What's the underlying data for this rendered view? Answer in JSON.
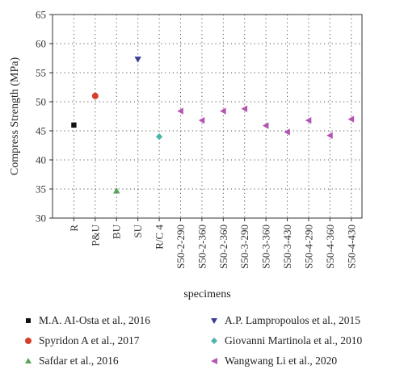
{
  "chart_data": {
    "type": "scatter",
    "xlabel": "specimens",
    "ylabel": "Compress Strength (MPa)",
    "ylim": [
      30,
      65
    ],
    "yticks": [
      30,
      35,
      40,
      45,
      50,
      55,
      60,
      65
    ],
    "categories": [
      "R",
      "P&U",
      "BU",
      "SU",
      "R/C 4",
      "S50-2-290",
      "S50-2-360",
      "S50-2-360",
      "S50-3-290",
      "S50-3-360",
      "S50-3-430",
      "S50-4-290",
      "S50-4-360",
      "S50-4-430"
    ],
    "grid": true,
    "legend_position": "bottom",
    "series": [
      {
        "name": "M.A. AI-Osta et al., 2016",
        "color": "#111111",
        "marker": "square",
        "points": [
          {
            "x": "R",
            "y": 46.0
          }
        ]
      },
      {
        "name": "A.P. Lampropoulos et al., 2015",
        "color": "#3a3f8f",
        "marker": "triangle-down",
        "points": [
          {
            "x": "SU",
            "y": 57.3
          }
        ]
      },
      {
        "name": "Spyridon A et al., 2017",
        "color": "#d6402b",
        "marker": "circle",
        "points": [
          {
            "x": "P&U",
            "y": 51.0
          }
        ]
      },
      {
        "name": "Giovanni Martinola et al., 2010",
        "color": "#4fb5a9",
        "marker": "diamond",
        "points": [
          {
            "x": "R/C 4",
            "y": 44.0
          }
        ]
      },
      {
        "name": "Safdar et al., 2016",
        "color": "#5aa35a",
        "marker": "triangle-up",
        "points": [
          {
            "x": "BU",
            "y": 34.7
          }
        ]
      },
      {
        "name": "Wangwang Li et al., 2020",
        "color": "#b356b3",
        "marker": "triangle-left",
        "points": [
          {
            "x": "S50-2-290",
            "y": 48.4
          },
          {
            "x": "S50-2-360",
            "y": 46.8
          },
          {
            "x": "S50-2-360",
            "y": 48.4
          },
          {
            "x": "S50-3-290",
            "y": 48.8
          },
          {
            "x": "S50-3-360",
            "y": 45.9
          },
          {
            "x": "S50-3-430",
            "y": 44.8
          },
          {
            "x": "S50-4-290",
            "y": 46.8
          },
          {
            "x": "S50-4-360",
            "y": 44.2
          },
          {
            "x": "S50-4-430",
            "y": 47.0
          }
        ]
      }
    ]
  }
}
